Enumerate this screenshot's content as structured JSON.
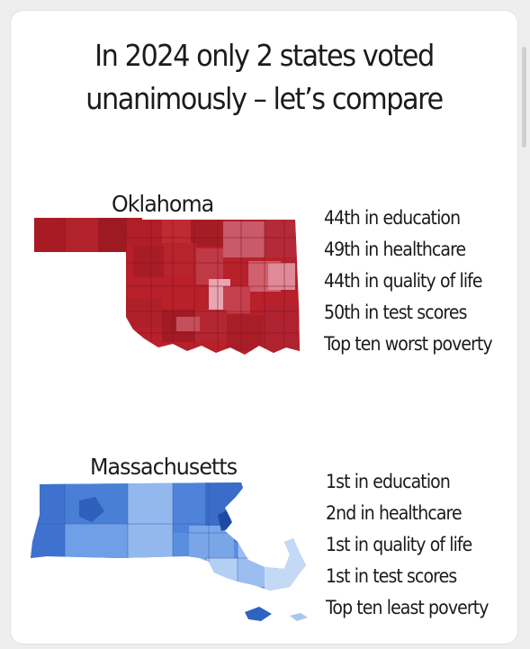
{
  "title": {
    "line1": "In 2024 only 2 states voted",
    "line2": "unanimously – let’s compare"
  },
  "states": [
    {
      "name": "Oklahoma",
      "color": "#b8202a",
      "stats": [
        "44th in education",
        "49th in healthcare",
        "44th in quality of life",
        "50th in test scores",
        "Top ten worst poverty"
      ]
    },
    {
      "name": "Massachusetts",
      "color": "#4f85d8",
      "stats": [
        "1st in education",
        "2nd in healthcare",
        "1st in quality of life",
        "1st in test scores",
        "Top ten least poverty"
      ]
    }
  ]
}
